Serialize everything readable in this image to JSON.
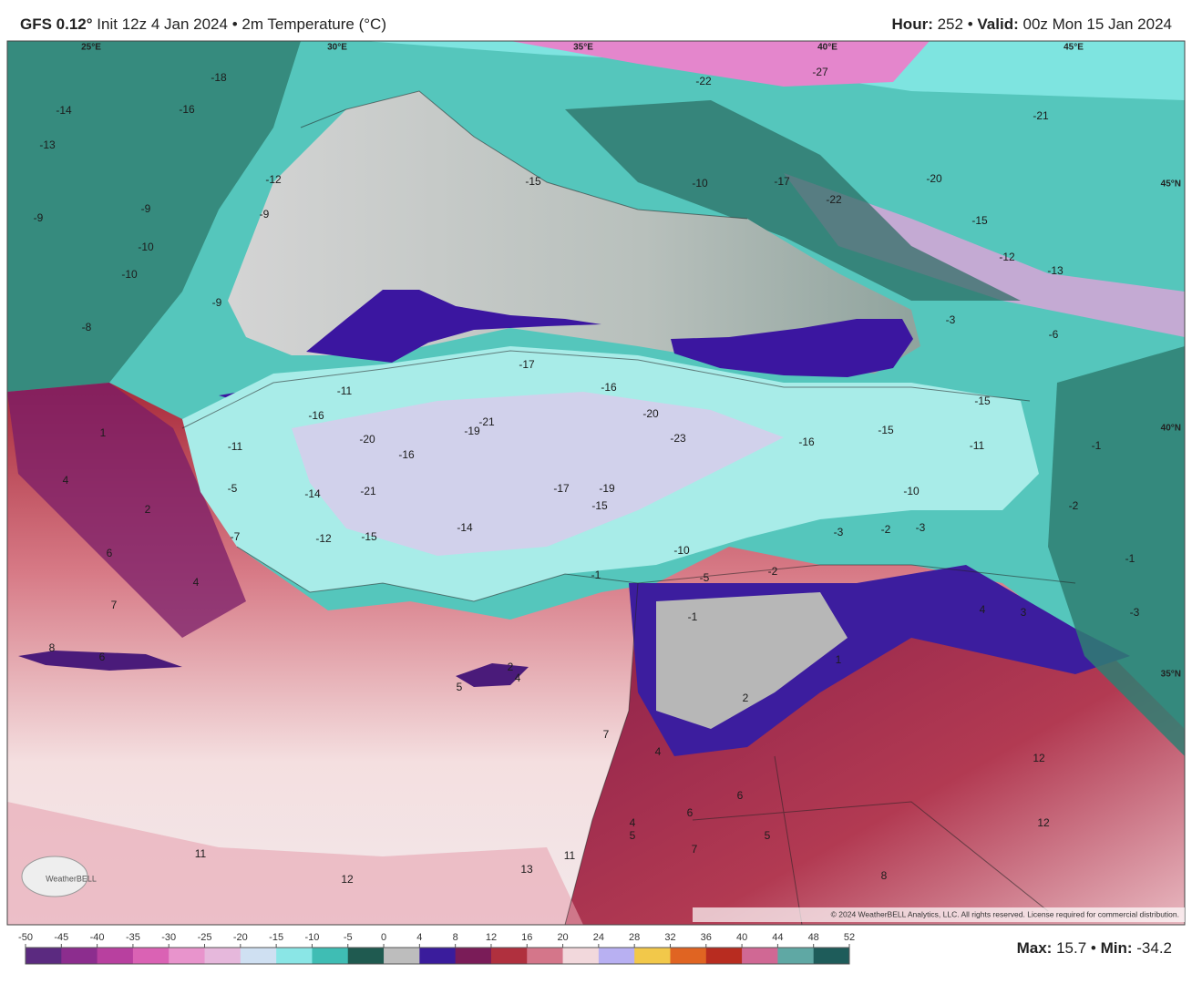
{
  "header": {
    "model": "GFS 0.12°",
    "init": "Init 12z 4 Jan 2024",
    "separator": "•",
    "variable": "2m Temperature (°C)",
    "hour_label": "Hour:",
    "hour": "252",
    "valid_label": "Valid:",
    "valid": "00z Mon 15 Jan 2024"
  },
  "geo_labels": [
    "25°E",
    "30°E",
    "35°E",
    "40°E",
    "45°E",
    "45°N",
    "40°N",
    "35°N"
  ],
  "map_labels": [
    -14,
    -16,
    -13,
    -18,
    -9,
    -9,
    -9,
    -10,
    -10,
    -8,
    -9,
    -12,
    -15,
    -10,
    -17,
    -22,
    -22,
    -27,
    -21,
    -20,
    -15,
    -12,
    -13,
    -17,
    -16,
    -20,
    -19,
    -21,
    -23,
    -16,
    -15,
    -15,
    -11,
    -20,
    -16,
    -14,
    -21,
    -17,
    -19,
    -15,
    -14,
    -12,
    -15,
    -10,
    -10,
    -3,
    -2,
    -3,
    -1,
    -5,
    -2,
    -1,
    1,
    2,
    4,
    3,
    4,
    6,
    7,
    2,
    4,
    6,
    8,
    2,
    4,
    5,
    4,
    7,
    6,
    6,
    5,
    7,
    4,
    5,
    8,
    12,
    12,
    11,
    12,
    13,
    11,
    -1,
    -2,
    -3,
    -1,
    -6,
    -3,
    -7,
    -5,
    -11,
    -16,
    -11,
    1
  ],
  "logo": "WeatherBELL",
  "copyright": "© 2024 WeatherBELL Analytics, LLC. All rights reserved. License required for commercial distribution.",
  "colorbar": {
    "ticks": [
      -50,
      -45,
      -40,
      -35,
      -30,
      -25,
      -20,
      -15,
      -10,
      -5,
      0,
      4,
      8,
      12,
      16,
      20,
      24,
      28,
      32,
      36,
      40,
      44,
      48,
      52
    ],
    "colors": [
      "#5b2a80",
      "#8c2d8e",
      "#b8409f",
      "#da62b4",
      "#e894cc",
      "#e6b8dc",
      "#cfe0f2",
      "#8ae6e6",
      "#3fbdb4",
      "#1f5a50",
      "#bdbdbd",
      "#3a1c9c",
      "#7a1c58",
      "#b0303e",
      "#d4768a",
      "#f2d8dc",
      "#b8b0f2",
      "#f2c84a",
      "#e06422",
      "#b82c20",
      "#d06894",
      "#5fa8a4",
      "#1e5c5a"
    ]
  },
  "footer": {
    "max_label": "Max:",
    "max": "15.7",
    "separator": "•",
    "min_label": "Min:",
    "min": "-34.2"
  }
}
